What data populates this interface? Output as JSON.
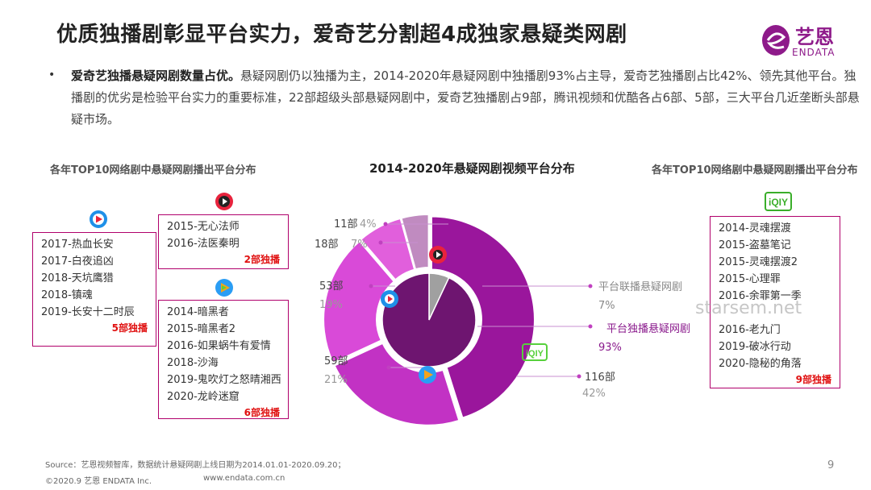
{
  "title": "优质独播剧彰显平台实力，爱奇艺分割超4成独家悬疑类网剧",
  "logo": {
    "cn": "艺恩",
    "en": "ENDATA"
  },
  "summary": {
    "bullet": "•",
    "bold": "爱奇艺独播悬疑网剧数量占优。",
    "text": "悬疑网剧仍以独播为主，2014-2020年悬疑网剧中独播剧93%占主导，爱奇艺独播剧占比42%、领先其他平台。独播剧的优劣是检验平台实力的重要标准，22部超级头部悬疑网剧中，爱奇艺独播剧占9部，腾讯视频和优酷各占6部、5部，三大平台几近垄断头部悬疑市场。"
  },
  "left_title": "各年TOP10网络剧中悬疑网剧播出平台分布",
  "right_title": "各年TOP10网络剧中悬疑网剧播出平台分布",
  "youku_box": {
    "icon": "youku-icon",
    "items": [
      "2017-热血长安",
      "2017-白夜追凶",
      "2018-天坑鹰猎",
      "2018-镇魂",
      "2019-长安十二时辰"
    ],
    "note": "5部独播"
  },
  "mango_box": {
    "icon": "sohu-icon",
    "items": [
      "2015-无心法师",
      "2016-法医秦明"
    ],
    "note": "2部独播"
  },
  "tencent_box": {
    "icon": "tencent-video-icon",
    "items": [
      "2014-暗黑者",
      "2015-暗黑者2",
      "2016-如果蜗牛有爱情",
      "2018-沙海",
      "2019-鬼吹灯之怒晴湘西",
      "2020-龙岭迷窟"
    ],
    "note": "6部独播"
  },
  "iqiyi_box": {
    "icon": "iqiyi-icon",
    "logo_text": "iQIY",
    "items": [
      "2014-灵魂摆渡",
      "2015-盗墓笔记",
      "2015-灵魂摆渡2",
      "2015-心理罪",
      "2016-余罪第一季",
      "",
      "2016-老九门",
      "2019-破冰行动",
      "2020-隐秘的角落"
    ],
    "note": "9部独播"
  },
  "watermark": "starsem.net",
  "chart_data": {
    "type": "pie",
    "title": "2014-2020年悬疑网剧视频平台分布",
    "outer": {
      "slices": [
        {
          "label": "116部",
          "pct": "42%",
          "value": 116,
          "color": "#9a169c",
          "platform": "iqiyi-icon"
        },
        {
          "label": "59部",
          "pct": "21%",
          "value": 59,
          "color": "#c232c4",
          "platform": "tencent-video-icon"
        },
        {
          "label": "53部",
          "pct": "19%",
          "value": 53,
          "color": "#d94ad8",
          "platform": "youku-icon"
        },
        {
          "label": "18部",
          "pct": "7%",
          "value": 18,
          "color": "#e15fdc",
          "platform": "sohu-icon"
        },
        {
          "label": "11部",
          "pct": "4%",
          "value": 11,
          "color": "#c08bc0",
          "platform": ""
        }
      ]
    },
    "inner": {
      "slices": [
        {
          "label": "平台独播悬疑网剧",
          "pct": "93%",
          "value": 93,
          "color": "#6e1570"
        },
        {
          "label": "平台联播悬疑网剧",
          "pct": "7%",
          "value": 7,
          "color": "#a0a0a0"
        }
      ]
    }
  },
  "footer": {
    "source": "Source：艺恩视频智库，数据统计悬疑网剧上线日期为2014.01.01-2020.09.20；",
    "copyright": "©2020.9 艺恩 ENDATA Inc.",
    "url": "www.endata.com.cn",
    "page": "9"
  }
}
